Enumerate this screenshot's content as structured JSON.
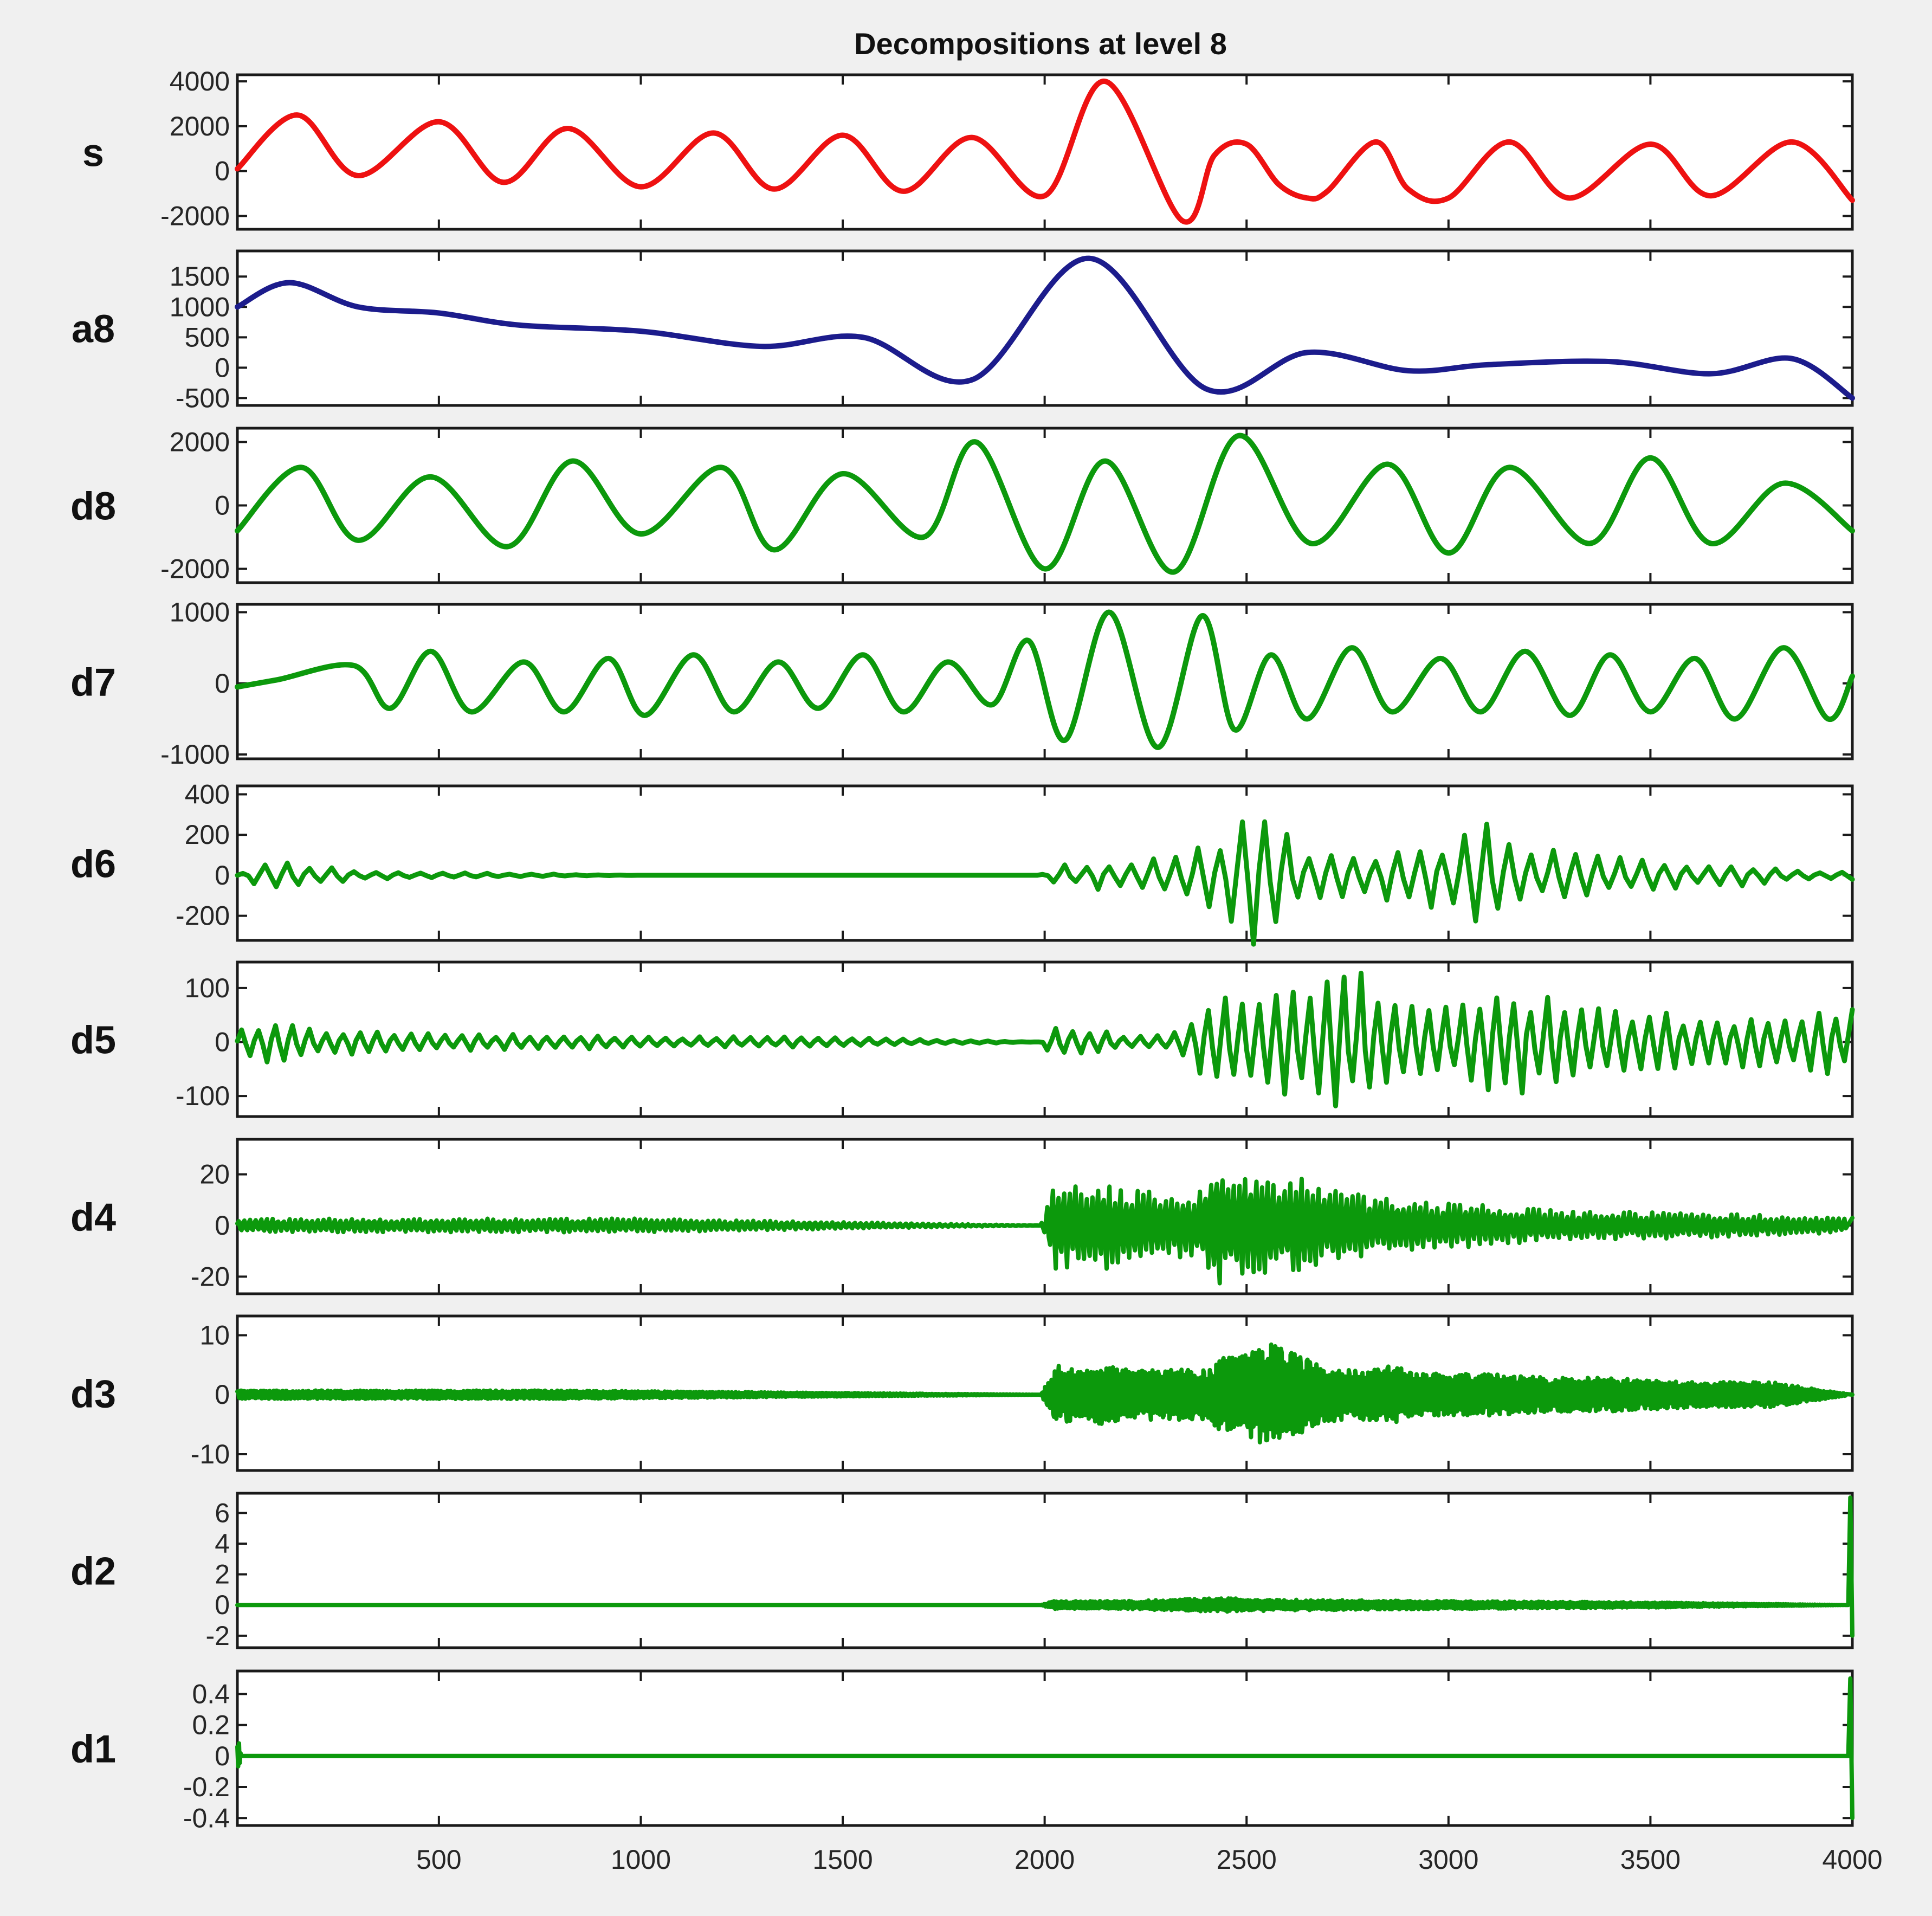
{
  "chart_data": {
    "type": "line",
    "title": "Decompositions at level 8",
    "xlim": [
      1,
      4000
    ],
    "x_ticks": [
      500,
      1000,
      1500,
      2000,
      2500,
      3000,
      3500,
      4000
    ],
    "x_tick_labels": [
      "500",
      "1000",
      "1500",
      "2000",
      "2500",
      "3000",
      "3500",
      "4000"
    ],
    "colors": {
      "signal": "#ee1111",
      "approximation": "#1c1c8c",
      "detail": "#0c990c"
    },
    "panels": [
      {
        "ylabel": "s",
        "color_role": "signal",
        "ylim": [
          -2400,
          4100
        ],
        "y_ticks": [
          4000,
          2000,
          0,
          -2000
        ],
        "y_tick_labels": [
          "4000",
          "2000",
          "0",
          "-2000"
        ],
        "x": [
          1,
          150,
          300,
          500,
          660,
          820,
          1000,
          1180,
          1330,
          1500,
          1650,
          1820,
          2000,
          2150,
          2340,
          2420,
          2500,
          2580,
          2650,
          2700,
          2820,
          2900,
          3000,
          3150,
          3300,
          3500,
          3650,
          3850,
          4000
        ],
        "values": [
          100,
          2500,
          -200,
          2200,
          -500,
          1900,
          -700,
          1700,
          -800,
          1600,
          -900,
          1500,
          -1100,
          4000,
          -2200,
          700,
          1200,
          -600,
          -1200,
          -900,
          1300,
          -800,
          -1200,
          1300,
          -1200,
          1200,
          -1100,
          1300,
          -1300
        ]
      },
      {
        "ylabel": "a8",
        "color_role": "approximation",
        "ylim": [
          -550,
          1850
        ],
        "y_ticks": [
          1500,
          1000,
          500,
          0,
          -500
        ],
        "y_tick_labels": [
          "1500",
          "1000",
          "500",
          "0",
          "-500"
        ],
        "x": [
          1,
          130,
          300,
          500,
          700,
          1000,
          1300,
          1550,
          1820,
          2110,
          2400,
          2650,
          2900,
          3100,
          3400,
          3650,
          3850,
          4000
        ],
        "values": [
          1000,
          1400,
          1000,
          900,
          700,
          600,
          350,
          500,
          -200,
          1800,
          -350,
          250,
          -50,
          50,
          100,
          -100,
          150,
          -500
        ]
      },
      {
        "ylabel": "d8",
        "color_role": "detail",
        "ylim": [
          -2300,
          2300
        ],
        "y_ticks": [
          2000,
          0,
          -2000
        ],
        "y_tick_labels": [
          "2000",
          "0",
          "-2000"
        ],
        "x": [
          1,
          160,
          300,
          480,
          670,
          830,
          1000,
          1200,
          1330,
          1500,
          1700,
          1830,
          2000,
          2150,
          2320,
          2480,
          2660,
          2850,
          3000,
          3150,
          3350,
          3500,
          3650,
          3830,
          4000
        ],
        "values": [
          -800,
          1200,
          -1100,
          900,
          -1300,
          1400,
          -900,
          1200,
          -1400,
          1000,
          -1000,
          2000,
          -2000,
          1400,
          -2100,
          2200,
          -1200,
          1300,
          -1500,
          1200,
          -1200,
          1500,
          -1200,
          700,
          -800
        ]
      },
      {
        "ylabel": "d7",
        "color_role": "detail",
        "ylim": [
          -1000,
          1050
        ],
        "y_ticks": [
          1000,
          0,
          -1000
        ],
        "y_tick_labels": [
          "1000",
          "0",
          "-1000"
        ],
        "x": [
          1,
          100,
          290,
          380,
          480,
          580,
          710,
          810,
          920,
          1010,
          1130,
          1230,
          1340,
          1440,
          1550,
          1650,
          1760,
          1870,
          1960,
          2050,
          2160,
          2280,
          2390,
          2470,
          2560,
          2650,
          2760,
          2860,
          2980,
          3080,
          3190,
          3300,
          3400,
          3500,
          3610,
          3710,
          3830,
          3940,
          4000
        ],
        "values": [
          -50,
          50,
          250,
          -350,
          450,
          -400,
          300,
          -400,
          350,
          -450,
          400,
          -400,
          300,
          -350,
          400,
          -400,
          300,
          -300,
          600,
          -800,
          1000,
          -900,
          950,
          -650,
          400,
          -500,
          500,
          -400,
          350,
          -400,
          450,
          -450,
          400,
          -400,
          350,
          -500,
          500,
          -500,
          100
        ]
      },
      {
        "ylabel": "d6",
        "color_role": "detail",
        "ylim": [
          -300,
          420
        ],
        "y_ticks": [
          400,
          200,
          0,
          -200
        ],
        "y_tick_labels": [
          "400",
          "200",
          "0",
          "-200"
        ],
        "x": [
          1,
          60,
          100,
          140,
          190,
          240,
          300,
          1000,
          1990,
          2040,
          2090,
          2140,
          2190,
          2240,
          2290,
          2340,
          2400,
          2450,
          2520,
          2580,
          2640,
          2700,
          2760,
          2820,
          2880,
          2950,
          3030,
          3100,
          3160,
          3200,
          3260,
          3340,
          3400,
          3460,
          3520,
          3600,
          3700,
          3800,
          3900,
          4000
        ],
        "values": [
          0,
          60,
          -60,
          70,
          -50,
          40,
          -20,
          0,
          0,
          60,
          -40,
          80,
          -70,
          100,
          -90,
          130,
          -150,
          200,
          380,
          -280,
          150,
          -140,
          120,
          -100,
          160,
          -160,
          200,
          -260,
          140,
          -120,
          140,
          -100,
          100,
          -80,
          80,
          -60,
          60,
          -40,
          20,
          -20
        ]
      },
      {
        "ylabel": "d5",
        "color_role": "detail",
        "ylim": [
          -130,
          140
        ],
        "y_ticks": [
          100,
          0,
          -100
        ],
        "y_tick_labels": [
          "100",
          "0",
          "-100"
        ],
        "x": [
          1,
          40,
          80,
          120,
          160,
          200,
          260,
          320,
          400,
          600,
          800,
          1000,
          1400,
          1990,
          2010,
          2040,
          2080,
          2120,
          2160,
          2200,
          2250,
          2300,
          2350,
          2380,
          2420,
          2460,
          2500,
          2550,
          2600,
          2650,
          2700,
          2740,
          2780,
          2820,
          2860,
          2900,
          2960,
          3020,
          3080,
          3140,
          3200,
          3260,
          3320,
          3400,
          3500,
          3600,
          3700,
          3800,
          3900,
          3960,
          4000
        ],
        "values": [
          20,
          -30,
          40,
          -40,
          30,
          -25,
          25,
          -20,
          20,
          -15,
          15,
          -10,
          10,
          0,
          20,
          -35,
          30,
          -25,
          20,
          -15,
          15,
          -10,
          30,
          -60,
          100,
          -110,
          100,
          -80,
          110,
          -110,
          120,
          -130,
          130,
          -120,
          100,
          -80,
          80,
          -70,
          90,
          -90,
          100,
          -90,
          70,
          -60,
          60,
          -50,
          50,
          -50,
          60,
          -60,
          60
        ]
      },
      {
        "ylabel": "d4",
        "color_role": "detail",
        "ylim": [
          -25,
          32
        ],
        "y_ticks": [
          20,
          0,
          -20
        ],
        "y_tick_labels": [
          "20",
          "0",
          "-20"
        ],
        "x": [
          1,
          500,
          1000,
          1990,
          2030,
          2060,
          2100,
          2140,
          2200,
          2260,
          2320,
          2380,
          2430,
          2470,
          2510,
          2550,
          2590,
          2640,
          2690,
          2760,
          2830,
          2900,
          2970,
          3050,
          3150,
          3300,
          3500,
          3700,
          4000
        ],
        "values": [
          3,
          -3,
          3,
          0,
          22,
          -18,
          18,
          -20,
          15,
          -15,
          14,
          -14,
          30,
          -20,
          24,
          -21,
          18,
          -23,
          16,
          -15,
          12,
          -12,
          10,
          -10,
          8,
          -6,
          6,
          -5,
          3
        ]
      },
      {
        "ylabel": "d3",
        "color_role": "detail",
        "ylim": [
          -12,
          12.5
        ],
        "y_ticks": [
          10,
          0,
          -10
        ],
        "y_tick_labels": [
          "10",
          "0",
          "-10"
        ],
        "x": [
          1,
          400,
          800,
          1990,
          2030,
          2080,
          2140,
          2200,
          2270,
          2340,
          2400,
          2440,
          2480,
          2520,
          2560,
          2620,
          2680,
          2740,
          2800,
          2860,
          2920,
          3000,
          3100,
          3250,
          3400,
          3600,
          3800,
          4000
        ],
        "values": [
          1,
          -1,
          1,
          0,
          7,
          -6,
          7,
          -6,
          6,
          -6,
          6,
          -9,
          9,
          -11,
          12,
          -10,
          7,
          -6,
          6,
          -7,
          5,
          -5,
          5,
          -4,
          4,
          -3,
          3,
          0
        ]
      },
      {
        "ylabel": "d2",
        "color_role": "detail",
        "ylim": [
          -2.5,
          7
        ],
        "y_ticks": [
          6,
          4,
          2,
          0,
          -2
        ],
        "y_tick_labels": [
          "6",
          "4",
          "2",
          "0",
          "-2"
        ],
        "x": [
          1,
          1000,
          1990,
          2020,
          2200,
          2420,
          2480,
          2600,
          3000,
          3500,
          3990,
          3995,
          4000
        ],
        "values": [
          0,
          0,
          0,
          0.3,
          -0.3,
          0.5,
          -0.5,
          0.4,
          -0.3,
          0.2,
          0,
          7,
          -2
        ]
      },
      {
        "ylabel": "d1",
        "color_role": "detail",
        "ylim": [
          -0.42,
          0.52
        ],
        "y_ticks": [
          0.4,
          0.2,
          0,
          -0.2,
          -0.4
        ],
        "y_tick_labels": [
          "0.4",
          "0.2",
          "0",
          "-0.2",
          "-0.4"
        ],
        "x": [
          1,
          5,
          10,
          1000,
          2000,
          3000,
          3990,
          3995,
          4000
        ],
        "values": [
          0.1,
          -0.1,
          0,
          0,
          0,
          0,
          0,
          0.5,
          -0.4
        ]
      }
    ]
  }
}
